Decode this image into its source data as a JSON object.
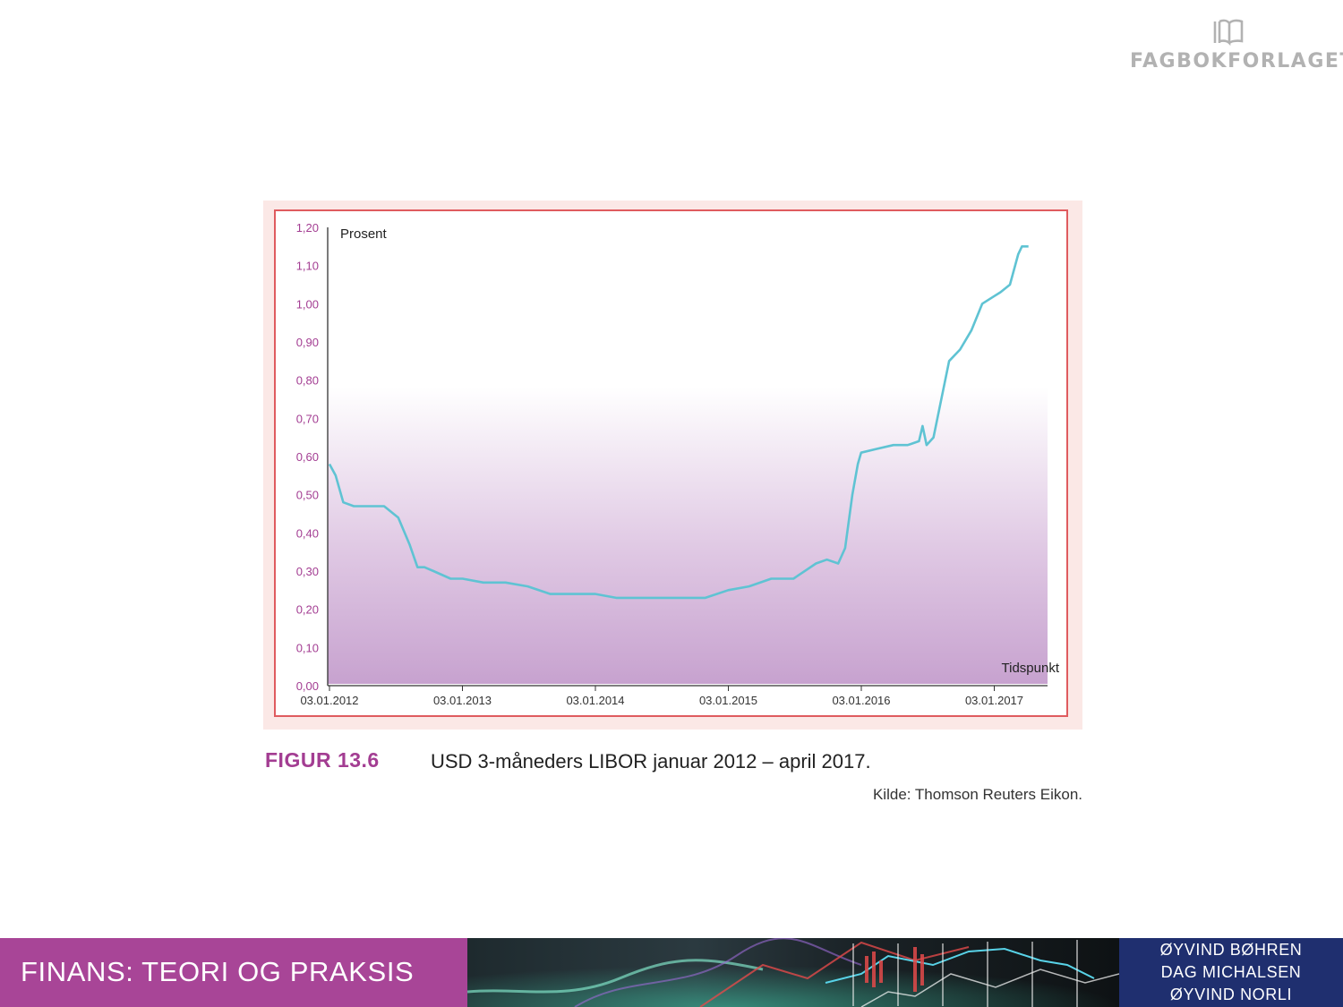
{
  "publisher": {
    "name": "FAGBOKFORLAGET",
    "logo_icon": "book-outline-icon"
  },
  "figure": {
    "number": "FIGUR 13.6",
    "caption": "USD 3-måneders LIBOR januar 2012 – april 2017.",
    "source": "Kilde: Thomson Reuters Eikon."
  },
  "footer": {
    "book_title": "FINANS: TEORI OG PRAKSIS",
    "authors": [
      "ØYVIND BØHREN",
      "DAG MICHALSEN",
      "ØYVIND NORLI"
    ]
  },
  "colors": {
    "figure_accent": "#a33d92",
    "frame_border": "#df5b5f",
    "axis_tick_labels": "#a33d92",
    "series_line": "#5fc3d3",
    "area_fill_bottom": "#c7a2cf",
    "footer_title_bg": "#a84597",
    "footer_authors_bg": "#1f2f6f"
  },
  "chart_data": {
    "type": "line",
    "ylabel": "Prosent",
    "xlabel": "Tidspunkt",
    "ylim": [
      0,
      1.2
    ],
    "y_ticks": [
      "0,00",
      "0,10",
      "0,20",
      "0,30",
      "0,40",
      "0,50",
      "0,60",
      "0,70",
      "0,80",
      "0,90",
      "1,00",
      "1,10",
      "1,20"
    ],
    "x_ticks": [
      "03.01.2012",
      "03.01.2013",
      "03.01.2014",
      "03.01.2015",
      "03.01.2016",
      "03.01.2017"
    ],
    "grid": false,
    "legend": "none",
    "fill": "vertical gradient under the axis range, white at top to light purple at bottom",
    "series": [
      {
        "x": [
          "2012-01-03",
          "2012-01-20",
          "2012-02-10",
          "2012-03-10",
          "2012-04-15",
          "2012-06-01",
          "2012-07-10",
          "2012-08-10",
          "2012-09-01",
          "2012-09-20",
          "2012-10-15",
          "2012-12-01",
          "2013-01-03",
          "2013-03-01",
          "2013-05-01",
          "2013-07-01",
          "2013-09-01",
          "2013-11-01",
          "2014-01-03",
          "2014-03-01",
          "2014-05-01",
          "2014-07-01",
          "2014-09-01",
          "2014-11-01",
          "2015-01-03",
          "2015-03-01",
          "2015-05-01",
          "2015-07-01",
          "2015-09-01",
          "2015-10-01",
          "2015-11-01",
          "2015-11-20",
          "2015-12-10",
          "2015-12-25",
          "2016-01-03",
          "2016-02-15",
          "2016-04-01",
          "2016-05-10",
          "2016-06-10",
          "2016-06-20",
          "2016-07-01",
          "2016-07-20",
          "2016-09-01",
          "2016-10-01",
          "2016-11-01",
          "2016-12-01",
          "2017-01-03",
          "2017-01-20",
          "2017-02-15",
          "2017-03-10",
          "2017-03-20",
          "2017-04-07"
        ],
        "y": [
          0.58,
          0.55,
          0.48,
          0.47,
          0.47,
          0.47,
          0.44,
          0.37,
          0.31,
          0.31,
          0.3,
          0.28,
          0.28,
          0.27,
          0.27,
          0.26,
          0.24,
          0.24,
          0.24,
          0.23,
          0.23,
          0.23,
          0.23,
          0.23,
          0.25,
          0.26,
          0.28,
          0.28,
          0.32,
          0.33,
          0.32,
          0.36,
          0.5,
          0.58,
          0.61,
          0.62,
          0.63,
          0.63,
          0.64,
          0.68,
          0.63,
          0.65,
          0.85,
          0.88,
          0.93,
          1.0,
          1.02,
          1.03,
          1.05,
          1.13,
          1.15,
          1.15
        ]
      }
    ]
  }
}
